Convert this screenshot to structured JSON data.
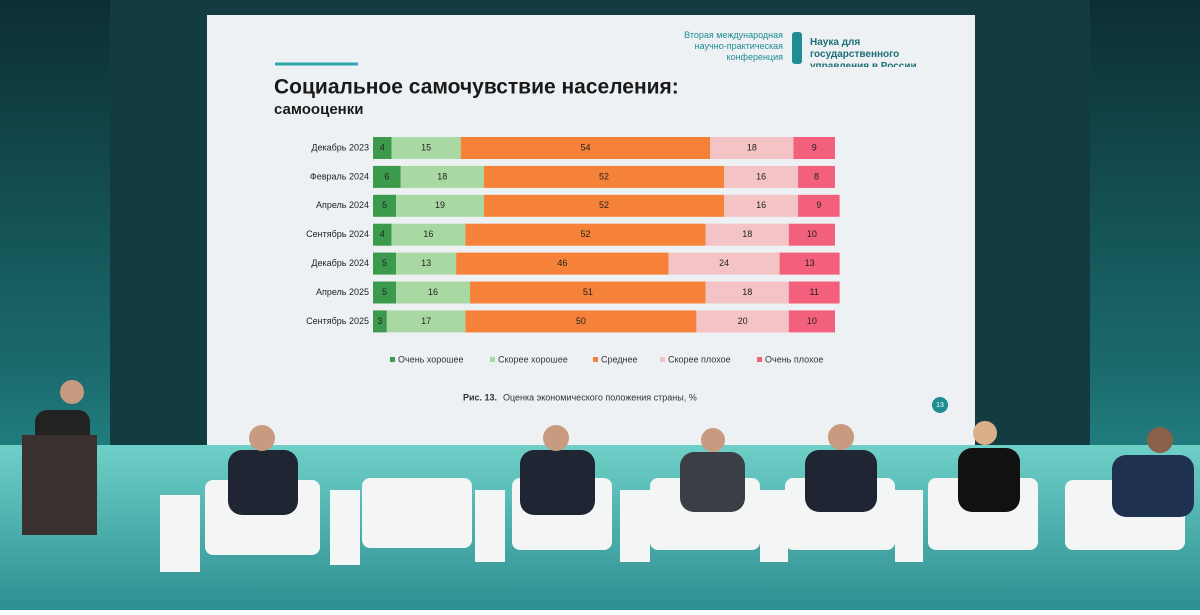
{
  "conference": {
    "name": "Вторая международная научно-практическая конференция",
    "brand": "Наука для государственного управления в России"
  },
  "slide_number": "13",
  "caption_label": "Рис. 13.",
  "caption": "Оценка экономического положения страны, %",
  "chart_data": {
    "type": "stacked-bar-horizontal",
    "title": "Социальное самочувствие населения:",
    "subtitle": "самооценки",
    "categories": [
      "Декабрь 2023",
      "Февраль 2024",
      "Апрель 2024",
      "Сентябрь 2024",
      "Декабрь 2024",
      "Апрель 2025",
      "Сентябрь 2025"
    ],
    "series": [
      {
        "name": "Очень хорошее",
        "color": "#3c9a4c",
        "values": [
          4,
          6,
          5,
          4,
          5,
          5,
          3
        ]
      },
      {
        "name": "Скорее хорошее",
        "color": "#a9d9a3",
        "values": [
          15,
          18,
          19,
          16,
          13,
          16,
          17
        ]
      },
      {
        "name": "Среднее",
        "color": "#f58238",
        "values": [
          54,
          52,
          52,
          52,
          46,
          51,
          50
        ]
      },
      {
        "name": "Скорее плохое",
        "color": "#f3c3c6",
        "values": [
          18,
          16,
          16,
          18,
          24,
          18,
          20
        ]
      },
      {
        "name": "Очень плохое",
        "color": "#f2607b",
        "values": [
          9,
          8,
          9,
          10,
          13,
          11,
          10
        ]
      }
    ],
    "legend": "bottom"
  }
}
